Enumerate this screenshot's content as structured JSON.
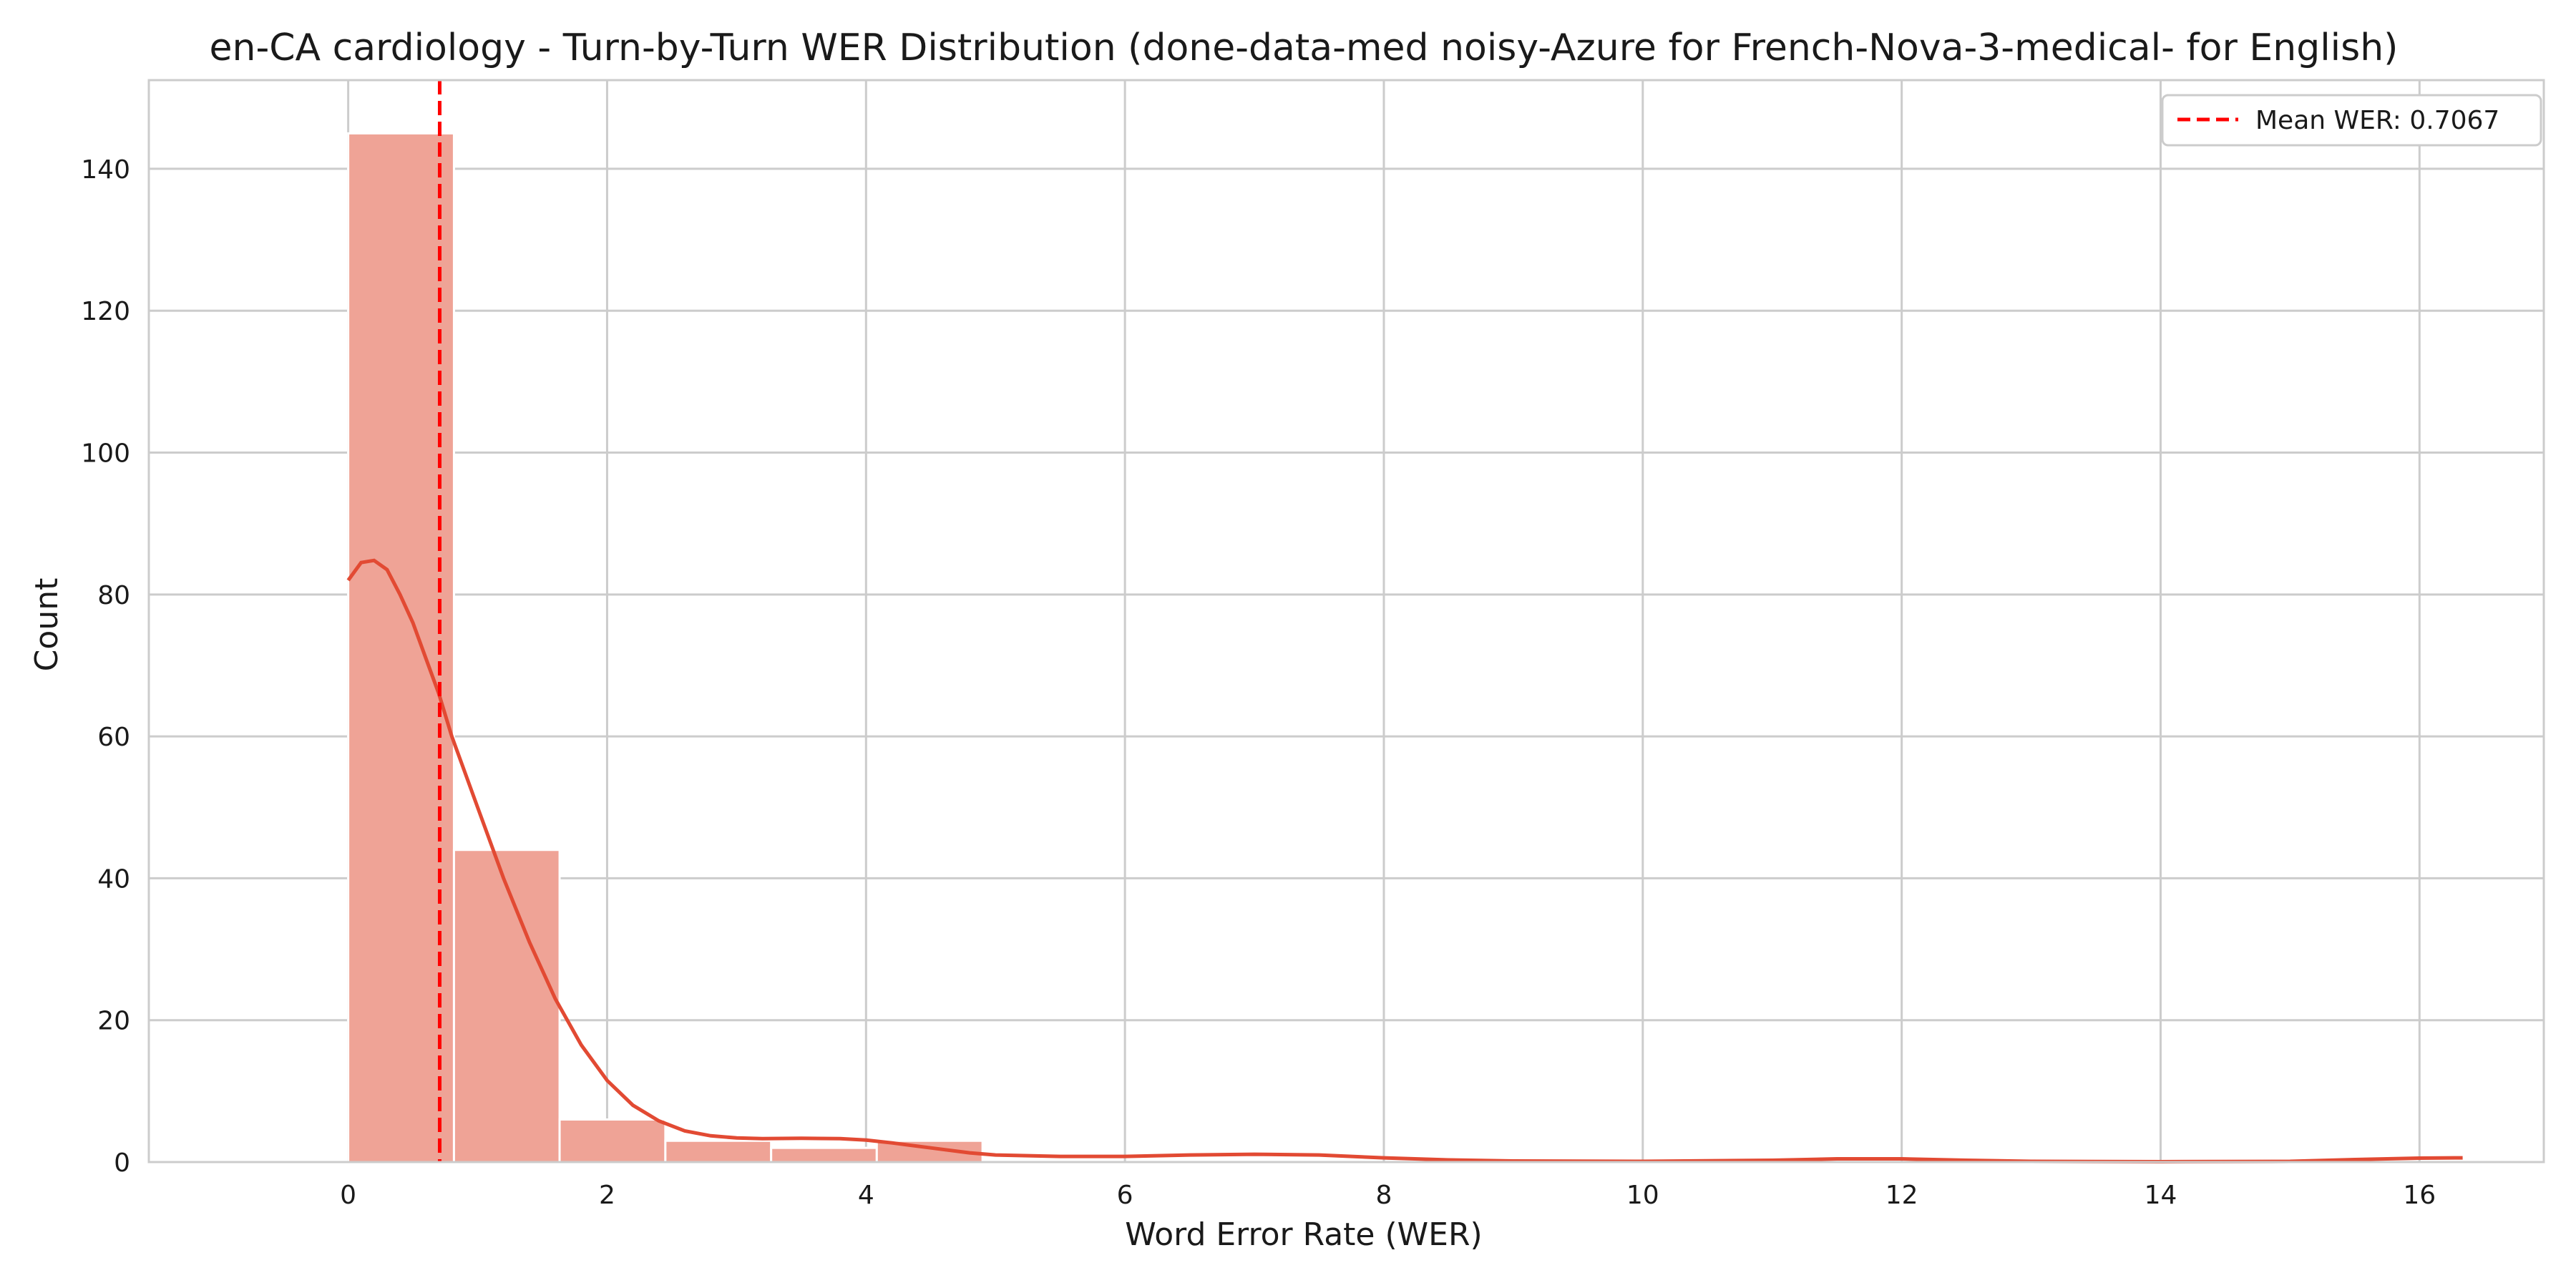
{
  "chart_data": {
    "type": "bar",
    "title": "en-CA cardiology - Turn-by-Turn WER Distribution (done-data-med noisy-Azure for French-Nova-3-medical- for English)",
    "xlabel": "Word Error Rate (WER)",
    "ylabel": "Count",
    "xlim": [
      -1.54,
      16.96
    ],
    "ylim": [
      0,
      152.5
    ],
    "xticks": [
      0,
      2,
      4,
      6,
      8,
      10,
      12,
      14,
      16
    ],
    "yticks": [
      0,
      20,
      40,
      60,
      80,
      100,
      120,
      140
    ],
    "grid": true,
    "legend_position": "top-right",
    "bins": [
      {
        "x0": 0.0,
        "x1": 0.817,
        "count": 145
      },
      {
        "x0": 0.817,
        "x1": 1.633,
        "count": 44
      },
      {
        "x0": 1.633,
        "x1": 2.45,
        "count": 6
      },
      {
        "x0": 2.45,
        "x1": 3.267,
        "count": 3
      },
      {
        "x0": 3.267,
        "x1": 4.083,
        "count": 2
      },
      {
        "x0": 4.083,
        "x1": 4.9,
        "count": 3
      },
      {
        "x0": 4.9,
        "x1": 5.717,
        "count": 0
      },
      {
        "x0": 5.717,
        "x1": 6.533,
        "count": 0
      },
      {
        "x0": 6.533,
        "x1": 7.35,
        "count": 0
      },
      {
        "x0": 7.35,
        "x1": 8.167,
        "count": 0
      },
      {
        "x0": 8.167,
        "x1": 8.983,
        "count": 0
      },
      {
        "x0": 8.983,
        "x1": 9.8,
        "count": 0
      },
      {
        "x0": 9.8,
        "x1": 10.617,
        "count": 0
      },
      {
        "x0": 10.617,
        "x1": 11.433,
        "count": 0
      },
      {
        "x0": 11.433,
        "x1": 12.25,
        "count": 0
      },
      {
        "x0": 12.25,
        "x1": 13.067,
        "count": 0
      },
      {
        "x0": 13.067,
        "x1": 13.883,
        "count": 0
      },
      {
        "x0": 13.883,
        "x1": 14.7,
        "count": 0
      },
      {
        "x0": 14.7,
        "x1": 15.517,
        "count": 0
      },
      {
        "x0": 15.517,
        "x1": 16.333,
        "count": 0
      }
    ],
    "kde": {
      "x": [
        0,
        0.1,
        0.2,
        0.3,
        0.4,
        0.5,
        0.6,
        0.7,
        0.8,
        1.0,
        1.2,
        1.4,
        1.6,
        1.8,
        2.0,
        2.2,
        2.4,
        2.6,
        2.8,
        3.0,
        3.2,
        3.5,
        3.8,
        4.0,
        4.2,
        4.5,
        4.8,
        5.0,
        5.5,
        6.0,
        6.5,
        7.0,
        7.5,
        8.0,
        8.5,
        9.0,
        10.0,
        11.0,
        11.5,
        12.0,
        12.5,
        13.0,
        14.0,
        15.0,
        15.5,
        16.0,
        16.333
      ],
      "y": [
        82,
        84.5,
        84.8,
        83.5,
        80,
        76,
        71,
        66,
        60,
        50,
        40,
        31,
        23,
        16.5,
        11.5,
        8,
        5.8,
        4.4,
        3.7,
        3.4,
        3.3,
        3.35,
        3.3,
        3.1,
        2.7,
        2.0,
        1.3,
        1.0,
        0.8,
        0.8,
        1.0,
        1.1,
        1.0,
        0.6,
        0.3,
        0.15,
        0.1,
        0.25,
        0.45,
        0.45,
        0.25,
        0.1,
        0.05,
        0.1,
        0.35,
        0.55,
        0.6
      ]
    },
    "mean_line": {
      "x": 0.7067,
      "label": "Mean WER: 0.7067"
    },
    "colors": {
      "bar_fill": "#efa396",
      "bar_stroke": "#ffffff",
      "kde_line": "#e24a33",
      "mean_line": "#ff0000",
      "grid": "#cccccc",
      "frame": "#cccccc"
    }
  }
}
